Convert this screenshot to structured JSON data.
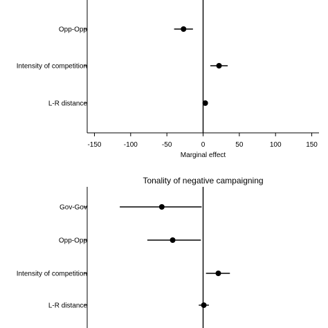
{
  "chart_data": [
    {
      "type": "coefficient_plot",
      "title": "",
      "xlabel": "Marginal effect",
      "xlim": [
        -160,
        160
      ],
      "xticks": [
        -150,
        -100,
        -50,
        0,
        50,
        100,
        150
      ],
      "tick_labels": [
        "-150",
        "-100",
        "-50",
        "0",
        "50",
        "100",
        "150"
      ],
      "reference_line": 0,
      "grid": false,
      "rows": [
        {
          "label": "Opp-Opp",
          "estimate": -27,
          "ci": [
            -40,
            -14
          ]
        },
        {
          "label": "Intensity of competition",
          "estimate": 22,
          "ci": [
            10,
            34
          ]
        },
        {
          "label": "L-R distance",
          "estimate": 3,
          "ci": [
            1,
            5
          ]
        }
      ]
    },
    {
      "type": "coefficient_plot",
      "title": "Tonality of negative campaigning",
      "xlabel": "",
      "xlim": [
        -160,
        160
      ],
      "xticks": [],
      "reference_line": 0,
      "grid": false,
      "rows": [
        {
          "label": "Gov-Gov",
          "estimate": -57,
          "ci": [
            -115,
            -2
          ]
        },
        {
          "label": "Opp-Opp",
          "estimate": -42,
          "ci": [
            -77,
            -3
          ]
        },
        {
          "label": "Intensity of competition",
          "estimate": 21,
          "ci": [
            4,
            37
          ]
        },
        {
          "label": "L-R distance",
          "estimate": 1,
          "ci": [
            -6,
            8
          ]
        }
      ]
    }
  ]
}
